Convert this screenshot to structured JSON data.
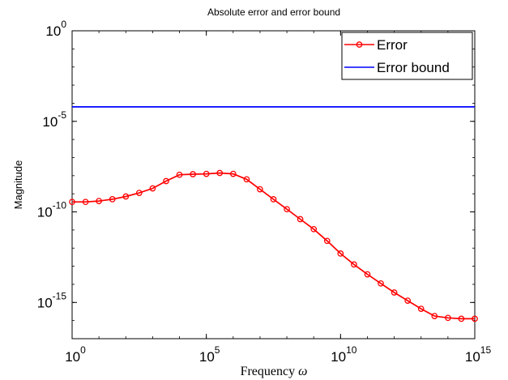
{
  "chart_data": {
    "type": "line",
    "title": "Absolute error and error bound",
    "xlabel": "Frequency",
    "xlabel_symbol": "ω",
    "ylabel": "Magnitude",
    "xscale": "log",
    "yscale": "log",
    "xlim": [
      1,
      1000000000000000.0
    ],
    "ylim": [
      1e-17,
      1
    ],
    "x_ticks": [
      {
        "value": 1,
        "base": "10",
        "exp": "0"
      },
      {
        "value": 100000,
        "base": "10",
        "exp": "5"
      },
      {
        "value": 10000000000,
        "base": "10",
        "exp": "10"
      },
      {
        "value": 1000000000000000,
        "base": "10",
        "exp": "15"
      }
    ],
    "y_ticks": [
      {
        "value": 1,
        "base": "10",
        "exp": "0"
      },
      {
        "value": 1e-05,
        "base": "10",
        "exp": "-5"
      },
      {
        "value": 1e-10,
        "base": "10",
        "exp": "-10"
      },
      {
        "value": 1e-15,
        "base": "10",
        "exp": "-15"
      }
    ],
    "grid": false,
    "legend": "top-right",
    "series": [
      {
        "name": "Error",
        "color": "#ff0000",
        "marker": "circle",
        "log10_x": [
          0,
          0.5,
          1,
          1.5,
          2,
          2.5,
          3,
          3.5,
          4,
          4.5,
          5,
          5.5,
          6,
          6.5,
          7,
          7.5,
          8,
          8.5,
          9,
          9.5,
          10,
          10.5,
          11,
          11.5,
          12,
          12.5,
          13,
          13.5,
          14,
          14.5,
          15
        ],
        "log10_y": [
          -9.45,
          -9.45,
          -9.4,
          -9.3,
          -9.15,
          -8.95,
          -8.7,
          -8.3,
          -7.95,
          -7.92,
          -7.9,
          -7.85,
          -7.9,
          -8.2,
          -8.75,
          -9.3,
          -9.85,
          -10.4,
          -10.95,
          -11.6,
          -12.3,
          -12.9,
          -13.45,
          -13.95,
          -14.45,
          -14.9,
          -15.35,
          -15.75,
          -15.85,
          -15.9,
          -15.9
        ]
      },
      {
        "name": "Error bound",
        "color": "#0000ff",
        "marker": "none",
        "log10_x": [
          0,
          15
        ],
        "log10_y": [
          -4.2,
          -4.2
        ]
      }
    ]
  }
}
